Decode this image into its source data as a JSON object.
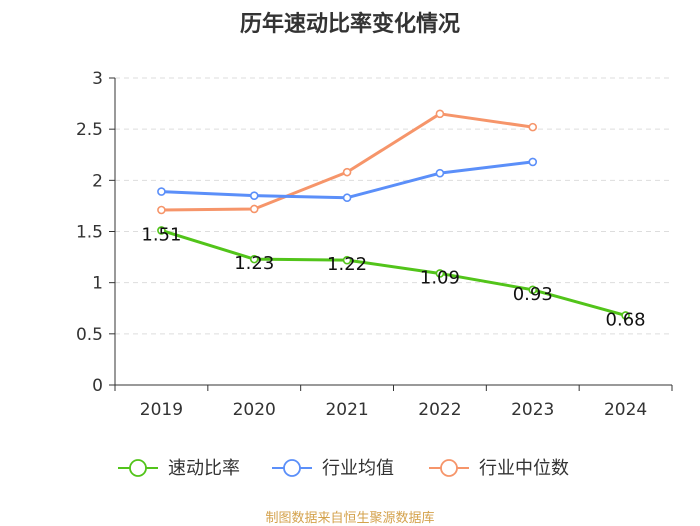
{
  "chart_data": {
    "type": "line",
    "title": "历年速动比率变化情况",
    "categories": [
      "2019",
      "2020",
      "2021",
      "2022",
      "2023",
      "2024"
    ],
    "y_ticks": [
      "0",
      "0.5",
      "1",
      "1.5",
      "2",
      "2.5",
      "3"
    ],
    "ylim": [
      0,
      3
    ],
    "grid": true,
    "legend_position": "bottom",
    "series": [
      {
        "name": "速动比率",
        "color": "#52c41a",
        "show_labels": true,
        "values": [
          1.51,
          1.23,
          1.22,
          1.09,
          0.93,
          0.68
        ],
        "labels": [
          "1.51",
          "1.23",
          "1.22",
          "1.09",
          "0.93",
          "0.68"
        ]
      },
      {
        "name": "行业均值",
        "color": "#5b8ff9",
        "show_labels": false,
        "values": [
          1.89,
          1.85,
          1.83,
          2.07,
          2.18,
          null
        ]
      },
      {
        "name": "行业中位数",
        "color": "#f6956a",
        "show_labels": false,
        "values": [
          1.71,
          1.72,
          2.08,
          2.65,
          2.52,
          null
        ]
      }
    ]
  },
  "source": "制图数据来自恒生聚源数据库"
}
